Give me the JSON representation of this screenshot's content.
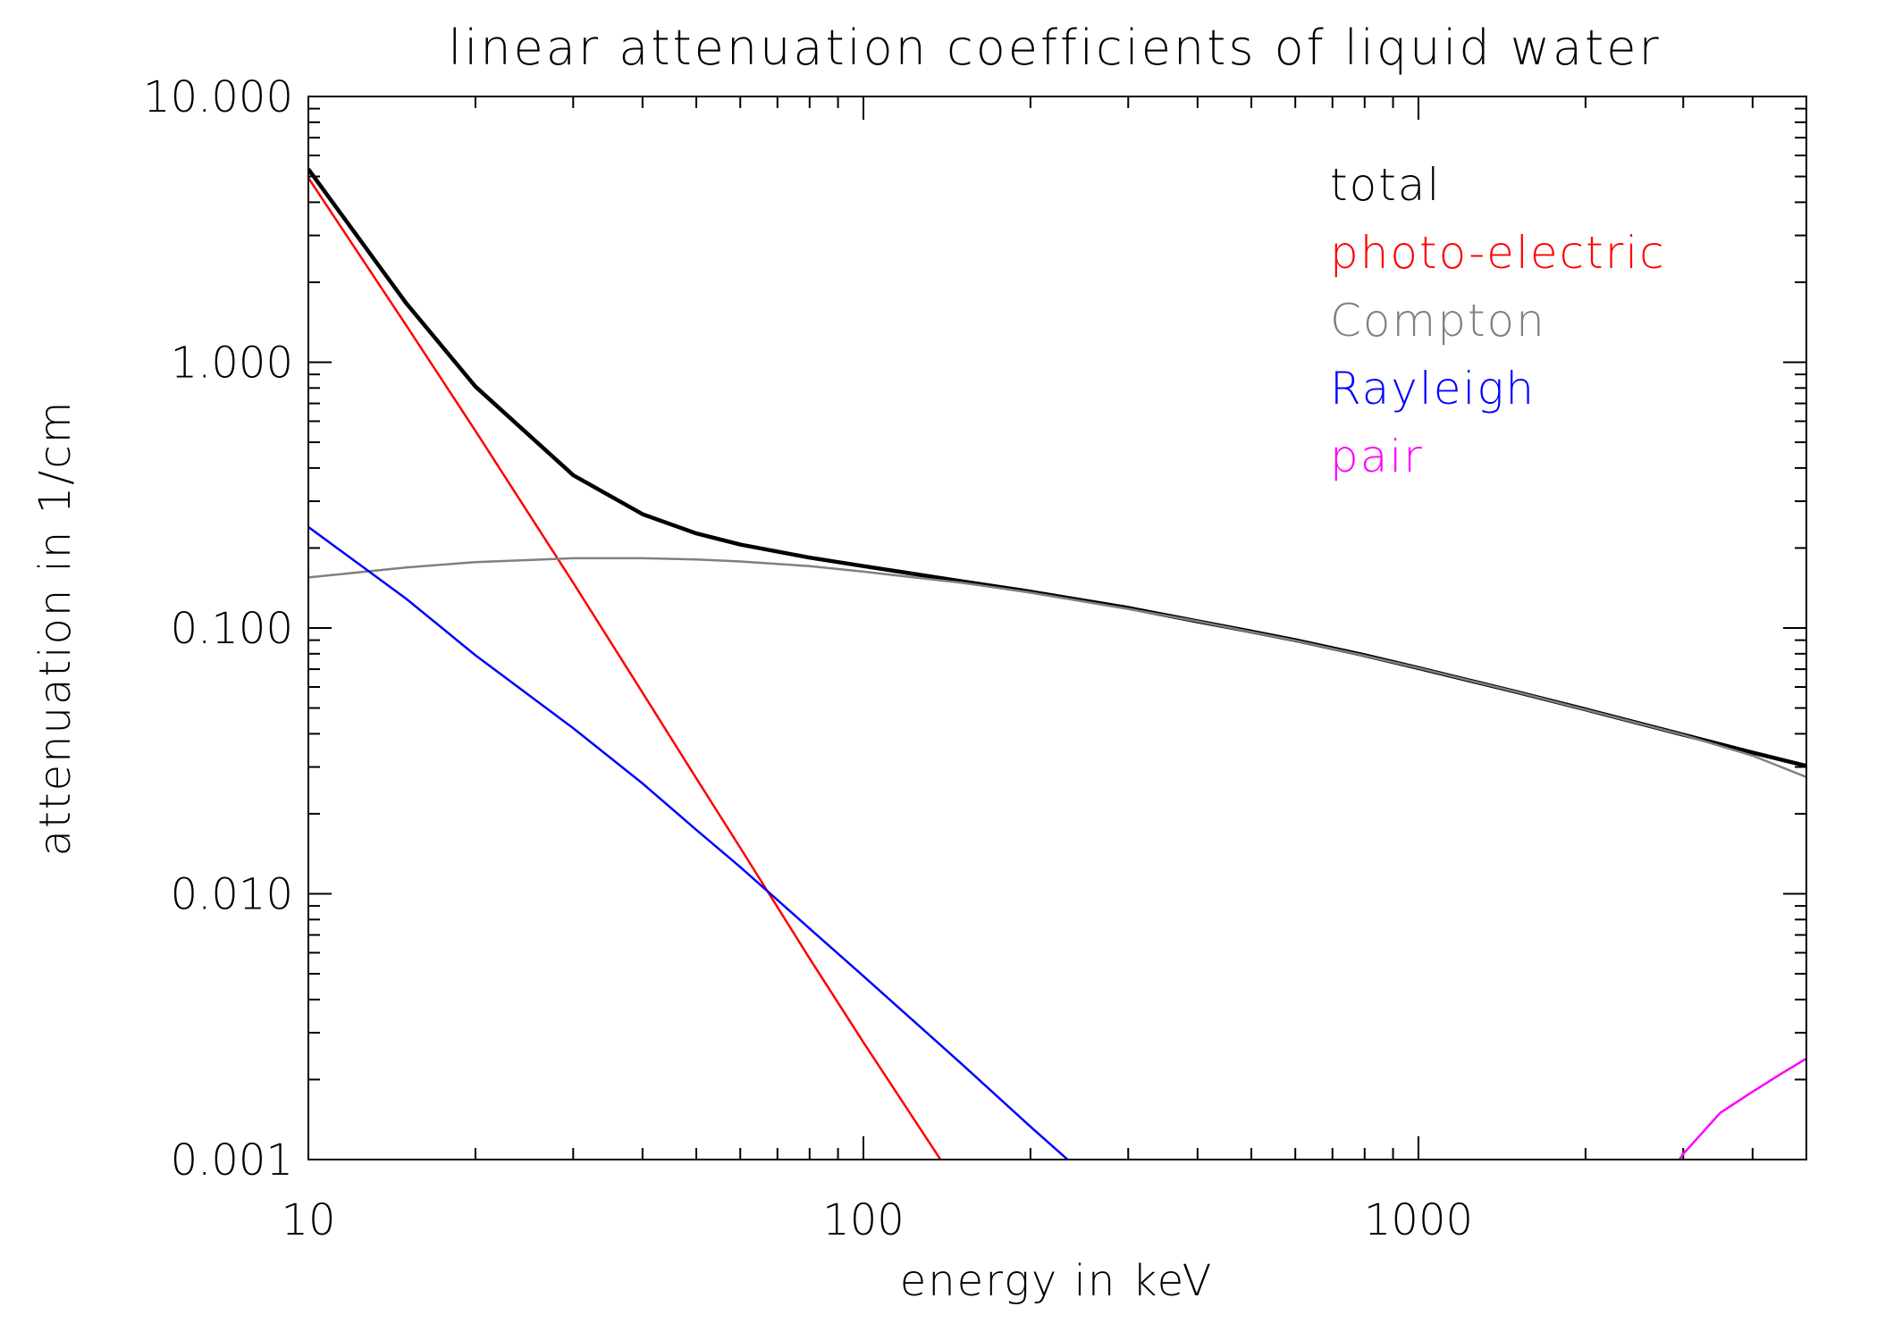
{
  "chart_data": {
    "type": "line",
    "title": "linear attenuation coefficients of liquid water",
    "xlabel": "energy in keV",
    "ylabel": "attenuation in 1/cm",
    "xscale": "log",
    "yscale": "log",
    "xlim": [
      10,
      5000
    ],
    "ylim": [
      0.001,
      10
    ],
    "xticks": [
      10,
      100,
      1000
    ],
    "xtick_labels": [
      "10",
      "100",
      "1000"
    ],
    "yticks": [
      0.001,
      0.01,
      0.1,
      1,
      10
    ],
    "ytick_labels": [
      "0.001",
      "0.010",
      "0.100",
      "1.000",
      "10.000"
    ],
    "grid": false,
    "legend_position": "top-right",
    "series": [
      {
        "name": "total",
        "color": "#000000",
        "x": [
          10,
          15,
          20,
          30,
          40,
          50,
          60,
          80,
          100,
          150,
          200,
          300,
          400,
          500,
          600,
          800,
          1000,
          1500,
          2000,
          3000,
          4000,
          5000
        ],
        "y": [
          5.33,
          1.67,
          0.81,
          0.376,
          0.268,
          0.227,
          0.206,
          0.184,
          0.171,
          0.15,
          0.137,
          0.119,
          0.106,
          0.097,
          0.09,
          0.079,
          0.0707,
          0.0575,
          0.0494,
          0.0397,
          0.034,
          0.0303
        ]
      },
      {
        "name": "photo-electric",
        "color": "#ff0000",
        "x": [
          10,
          15,
          20,
          30,
          40,
          50,
          60,
          80,
          100,
          150
        ],
        "y": [
          4.94,
          1.38,
          0.552,
          0.148,
          0.0571,
          0.0272,
          0.0149,
          0.00571,
          0.00276,
          0.000762
        ]
      },
      {
        "name": "Compton",
        "color": "#808080",
        "x": [
          10,
          15,
          20,
          30,
          40,
          50,
          60,
          80,
          100,
          150,
          200,
          300,
          400,
          500,
          600,
          800,
          1000,
          1500,
          2000,
          3000,
          4000,
          5000
        ],
        "y": [
          0.155,
          0.169,
          0.177,
          0.183,
          0.183,
          0.181,
          0.178,
          0.171,
          0.163,
          0.148,
          0.136,
          0.118,
          0.106,
          0.0966,
          0.0896,
          0.0786,
          0.0707,
          0.0575,
          0.0493,
          0.0396,
          0.0331,
          0.0275
        ]
      },
      {
        "name": "Rayleigh",
        "color": "#0000ff",
        "x": [
          10,
          15,
          20,
          30,
          40,
          50,
          60,
          80,
          100,
          150,
          200,
          250
        ],
        "y": [
          0.24,
          0.129,
          0.079,
          0.042,
          0.026,
          0.0174,
          0.0126,
          0.0074,
          0.0049,
          0.0023,
          0.00133,
          0.00088
        ]
      },
      {
        "name": "pair",
        "color": "#ff00ff",
        "x": [
          2800,
          3000,
          3500,
          4000,
          4500,
          5000
        ],
        "y": [
          0.00085,
          0.00105,
          0.0015,
          0.0018,
          0.0021,
          0.0024
        ]
      }
    ]
  }
}
